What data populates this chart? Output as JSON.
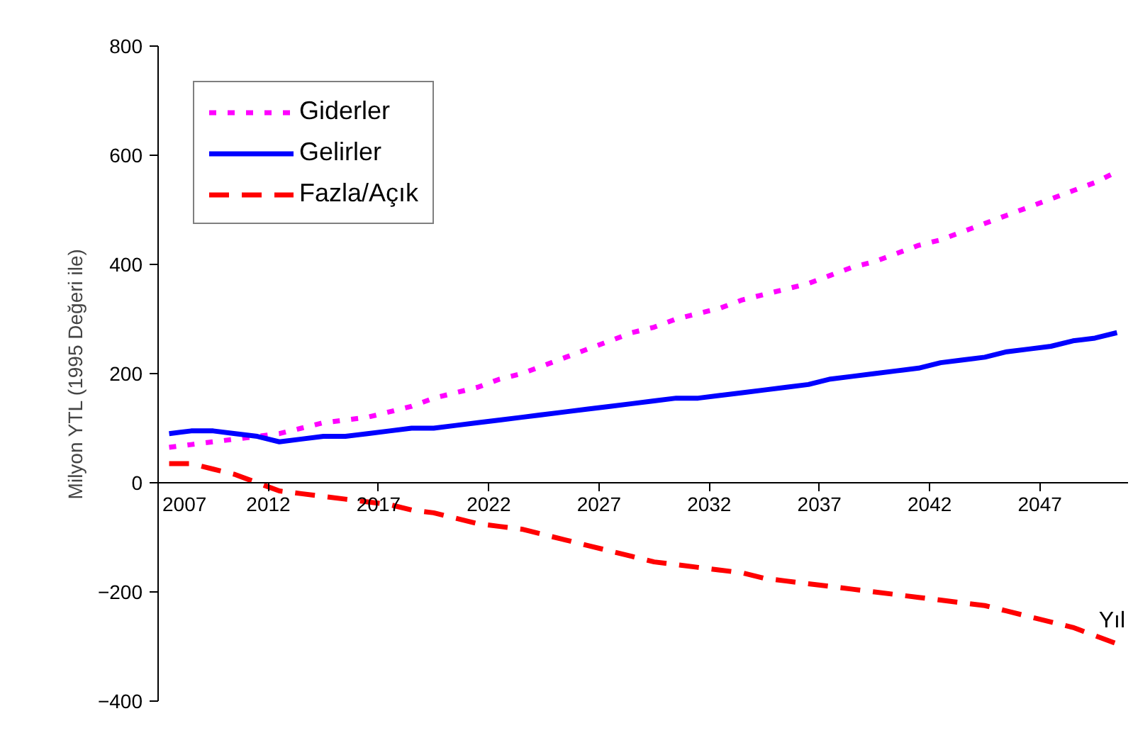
{
  "chart_data": {
    "type": "line",
    "xlabel": "Yıl",
    "ylabel": "Milyon YTL (1995 Değeri ile)",
    "x": [
      2007,
      2008,
      2009,
      2010,
      2011,
      2012,
      2013,
      2014,
      2015,
      2016,
      2017,
      2018,
      2019,
      2020,
      2021,
      2022,
      2023,
      2024,
      2025,
      2026,
      2027,
      2028,
      2029,
      2030,
      2031,
      2032,
      2033,
      2034,
      2035,
      2036,
      2037,
      2038,
      2039,
      2040,
      2041,
      2042,
      2043,
      2044,
      2045,
      2046,
      2047,
      2048,
      2049,
      2050
    ],
    "xlim": [
      2006.5,
      2050.5
    ],
    "xticks": [
      {
        "value": 2006.5,
        "label": "2007"
      },
      {
        "value": 2011.5,
        "label": "2012"
      },
      {
        "value": 2016.5,
        "label": "2017"
      },
      {
        "value": 2021.5,
        "label": "2022"
      },
      {
        "value": 2026.5,
        "label": "2027"
      },
      {
        "value": 2031.5,
        "label": "2032"
      },
      {
        "value": 2036.5,
        "label": "2037"
      },
      {
        "value": 2041.5,
        "label": "2042"
      },
      {
        "value": 2046.5,
        "label": "2047"
      }
    ],
    "ylim": [
      -400,
      800
    ],
    "yticks": [
      -400,
      -200,
      0,
      200,
      400,
      600,
      800
    ],
    "series": [
      {
        "name": "Giderler",
        "color": "#ff00ff",
        "line_style": "dotted",
        "values": [
          65,
          70,
          75,
          80,
          85,
          90,
          100,
          110,
          115,
          120,
          130,
          140,
          155,
          165,
          175,
          190,
          200,
          215,
          230,
          245,
          260,
          275,
          285,
          300,
          310,
          320,
          335,
          345,
          355,
          365,
          380,
          395,
          405,
          420,
          435,
          445,
          460,
          475,
          490,
          505,
          520,
          535,
          550,
          570
        ]
      },
      {
        "name": "Gelirler",
        "color": "#0000ff",
        "line_style": "solid",
        "values": [
          90,
          95,
          95,
          90,
          85,
          75,
          80,
          85,
          85,
          90,
          95,
          100,
          100,
          105,
          110,
          115,
          120,
          125,
          130,
          135,
          140,
          145,
          150,
          155,
          155,
          160,
          165,
          170,
          175,
          180,
          190,
          195,
          200,
          205,
          210,
          220,
          225,
          230,
          240,
          245,
          250,
          260,
          265,
          275
        ]
      },
      {
        "name": "Fazla/Açık",
        "color": "#ff0000",
        "line_style": "dashed",
        "values": [
          35,
          35,
          25,
          15,
          0,
          -15,
          -20,
          -25,
          -30,
          -35,
          -40,
          -50,
          -55,
          -65,
          -75,
          -80,
          -85,
          -95,
          -105,
          -115,
          -125,
          -135,
          -145,
          -150,
          -155,
          -160,
          -165,
          -175,
          -180,
          -185,
          -190,
          -195,
          -200,
          -205,
          -210,
          -215,
          -220,
          -225,
          -235,
          -245,
          -255,
          -265,
          -280,
          -295
        ]
      }
    ],
    "grid": false,
    "legend": "top left",
    "marker": "none"
  }
}
